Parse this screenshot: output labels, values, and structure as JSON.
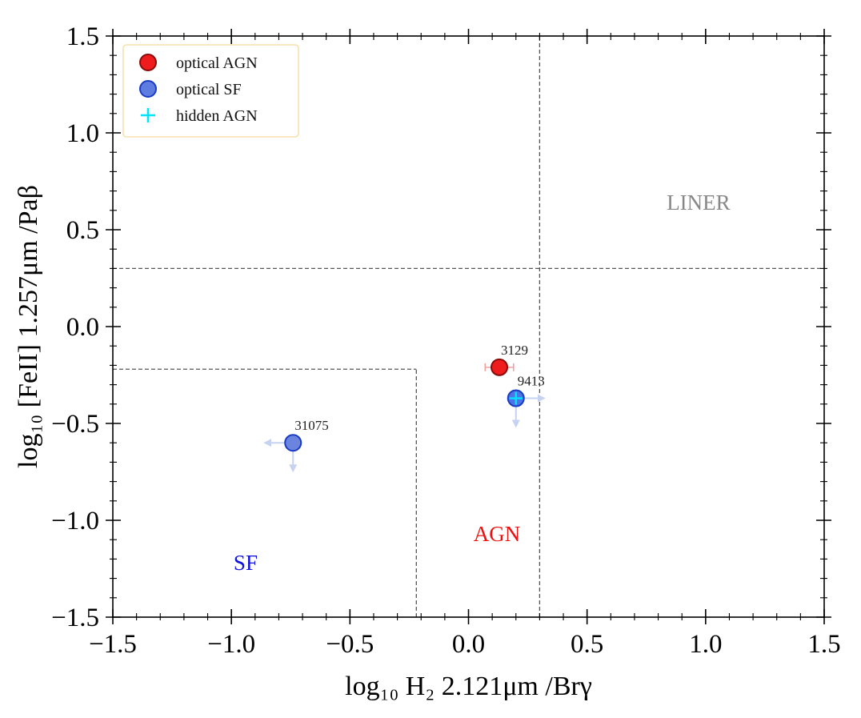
{
  "chart_data": {
    "type": "scatter",
    "xlabel": "log₁₀ H₂ 2.121μm /Brγ",
    "ylabel": "log₁₀ [FeII] 1.257μm /Paβ",
    "xlim": [
      -1.5,
      1.5
    ],
    "ylim": [
      -1.5,
      1.5
    ],
    "xticks": [
      -1.5,
      -1.0,
      -0.5,
      0.0,
      0.5,
      1.0,
      1.5
    ],
    "yticks": [
      -1.5,
      -1.0,
      -0.5,
      0.0,
      0.5,
      1.0,
      1.5
    ],
    "xtick_labels": [
      "−1.5",
      "−1.0",
      "−0.5",
      "0.0",
      "0.5",
      "1.0",
      "1.5"
    ],
    "ytick_labels": [
      "−1.5",
      "−1.0",
      "−0.5",
      "0.0",
      "0.5",
      "1.0",
      "1.5"
    ],
    "grid": false,
    "legend": {
      "placement": "top-left",
      "entries": [
        {
          "label": "optical AGN",
          "marker": "circle",
          "color": "#ee1c1c"
        },
        {
          "label": "optical SF",
          "marker": "circle",
          "color": "#5f7de0"
        },
        {
          "label": "hidden AGN",
          "marker": "plus",
          "color": "#00e5ff"
        }
      ]
    },
    "dividers": [
      {
        "type": "vertical",
        "x": 0.3,
        "y_from": -1.5,
        "y_to": 1.5
      },
      {
        "type": "horizontal",
        "y": 0.3,
        "x_from": -1.5,
        "x_to": 1.5
      },
      {
        "type": "vertical",
        "x": -0.22,
        "y_from": -1.5,
        "y_to": -0.22
      },
      {
        "type": "horizontal",
        "y": -0.22,
        "x_from": -1.5,
        "x_to": -0.22
      }
    ],
    "region_labels": [
      {
        "text": "LINER",
        "x": 0.97,
        "y": 0.64,
        "color": "#888888"
      },
      {
        "text": "AGN",
        "x": 0.12,
        "y": -1.07,
        "color": "#ee1111"
      },
      {
        "text": "SF",
        "x": -0.94,
        "y": -1.22,
        "color": "#1111dd"
      }
    ],
    "series": [
      {
        "name": "optical AGN",
        "points": [
          {
            "id": "3129",
            "x": 0.13,
            "y": -0.21,
            "xerr": 0.06,
            "hidden_agn": false,
            "x_upper_limit": false,
            "y_upper_limit": false
          }
        ]
      },
      {
        "name": "optical SF",
        "points": [
          {
            "id": "9413",
            "x": 0.2,
            "y": -0.37,
            "hidden_agn": true,
            "x_upper_limit": false,
            "x_lower_limit": true,
            "y_upper_limit": true
          },
          {
            "id": "31075",
            "x": -0.74,
            "y": -0.6,
            "hidden_agn": false,
            "x_upper_limit": true,
            "x_lower_limit": false,
            "y_upper_limit": true
          }
        ]
      }
    ]
  }
}
